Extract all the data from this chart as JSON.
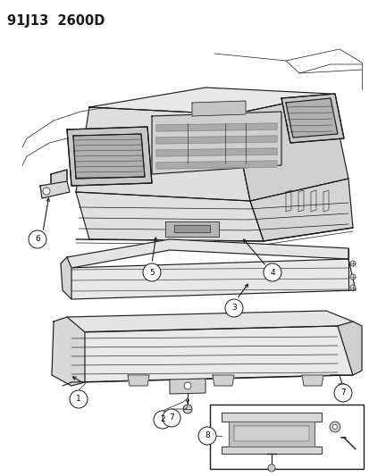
{
  "title": "91J13  2600D",
  "bg_color": "#ffffff",
  "line_color": "#1a1a1a",
  "figsize": [
    4.14,
    5.33
  ],
  "dpi": 100,
  "title_fontsize": 10.5,
  "callout_r": 0.018
}
